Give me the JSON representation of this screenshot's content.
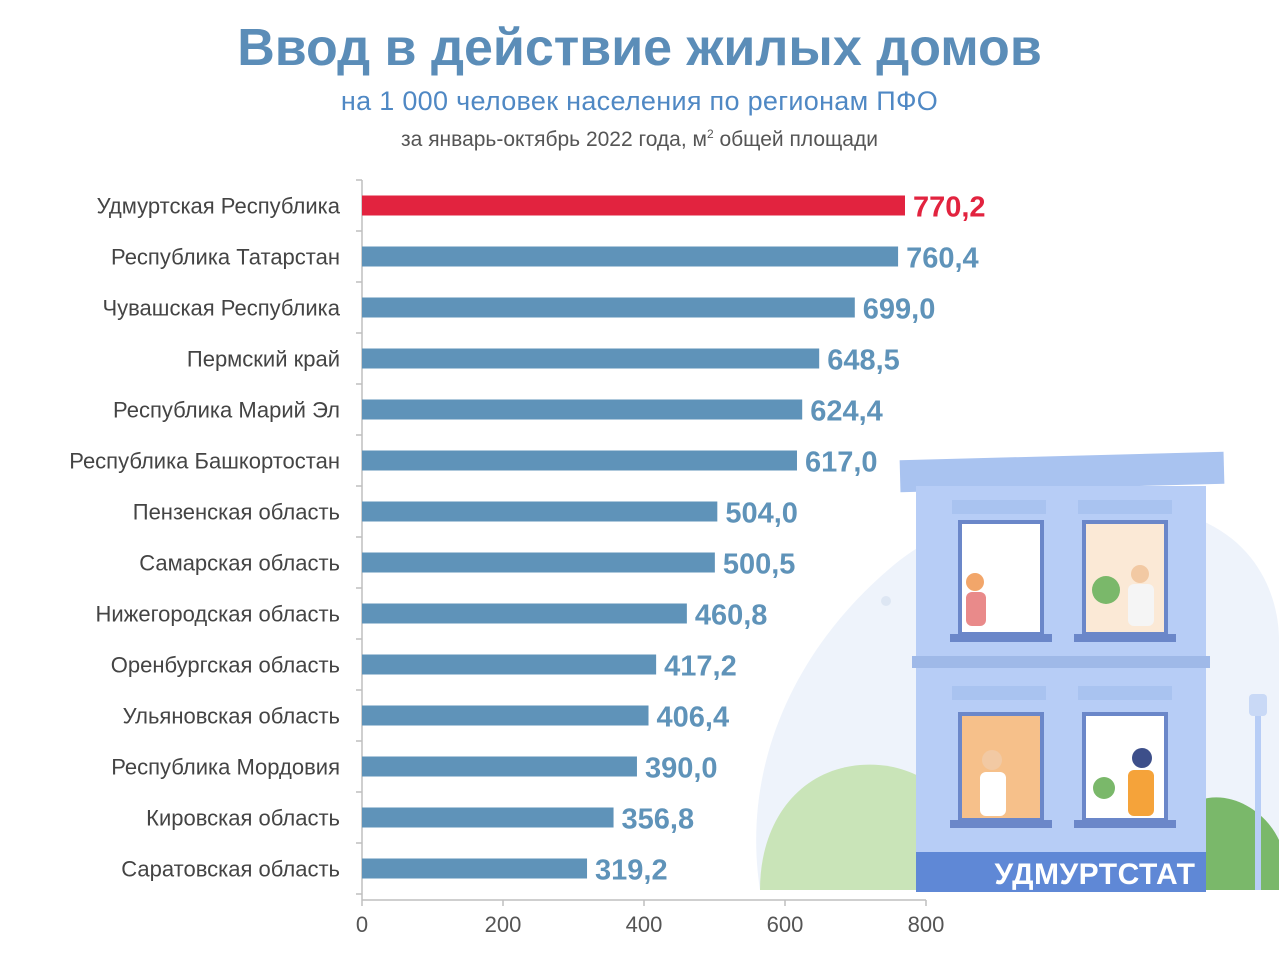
{
  "header": {
    "title": "Ввод в действие жилых домов",
    "subtitle": "на 1 000 человек населения по регионам ПФО",
    "note_main": "за январь-октябрь 2022 года, м",
    "note_sup": "2",
    "note_tail": " общей площади"
  },
  "logo": {
    "text": "УДМУРТСТАТ"
  },
  "colors": {
    "highlight": "#e2233f",
    "bar": "#5f93b9",
    "value": "#5f93b9",
    "axis": "#bfbfbf"
  },
  "chart_data": {
    "type": "bar",
    "orientation": "horizontal",
    "categories": [
      "Удмуртская Республика",
      "Республика Татарстан",
      "Чувашская Республика",
      "Пермский край",
      "Республика  Марий Эл",
      "Республика Башкортостан",
      "Пензенская область",
      "Самарская область",
      "Нижегородская область",
      "Оренбургская область",
      "Ульяновская область",
      "Республика Мордовия",
      "Кировская область",
      "Саратовская область"
    ],
    "values": [
      770.2,
      760.4,
      699.0,
      648.5,
      624.4,
      617.0,
      504.0,
      500.5,
      460.8,
      417.2,
      406.4,
      390.0,
      356.8,
      319.2
    ],
    "value_labels": [
      "770,2",
      "760,4",
      "699,0",
      "648,5",
      "624,4",
      "617,0",
      "504,0",
      "500,5",
      "460,8",
      "417,2",
      "406,4",
      "390,0",
      "356,8",
      "319,2"
    ],
    "highlight_index": 0,
    "xlim": [
      0,
      800
    ],
    "xticks": [
      0,
      200,
      400,
      600,
      800
    ],
    "xlabel": "",
    "ylabel": "",
    "grid": false,
    "legend": "none"
  }
}
